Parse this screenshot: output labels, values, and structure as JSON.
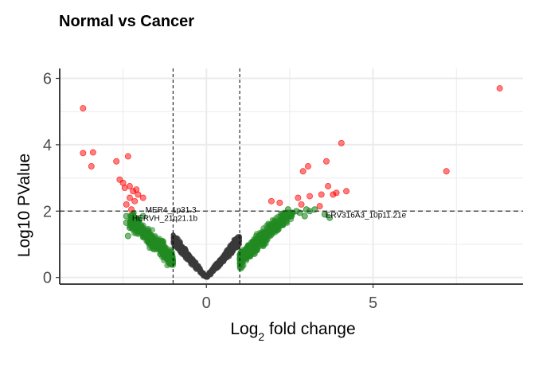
{
  "chart_data": {
    "type": "scatter",
    "title": "Normal vs Cancer",
    "xlabel": "Log2 fold change",
    "xlabel_parts": {
      "pre": "Log",
      "sub": "2",
      "post": " fold change"
    },
    "ylabel": "Log10 PValue",
    "xlim": [
      -4.4,
      9.5
    ],
    "ylim": [
      -0.2,
      6.3
    ],
    "x_ticks": [
      {
        "value": 0,
        "label": "0"
      },
      {
        "value": 5,
        "label": "5"
      }
    ],
    "y_ticks": [
      {
        "value": 0,
        "label": "0"
      },
      {
        "value": 2,
        "label": "2"
      },
      {
        "value": 4,
        "label": "4"
      },
      {
        "value": 6,
        "label": "6"
      }
    ],
    "grid": true,
    "thresholds": {
      "x": [
        -1,
        1
      ],
      "y": 2
    },
    "colors": {
      "significant": "#ff0000",
      "fold_change_only": "#228b22",
      "not_significant": "#3a3a3a"
    },
    "series": [
      {
        "color": "#ff0000",
        "points": [
          [
            -3.7,
            5.1
          ],
          [
            -3.7,
            3.75
          ],
          [
            -3.4,
            3.77
          ],
          [
            -3.45,
            3.35
          ],
          [
            -2.7,
            3.5
          ],
          [
            -2.35,
            3.65
          ],
          [
            -2.6,
            2.95
          ],
          [
            -2.5,
            2.85
          ],
          [
            -2.45,
            2.7
          ],
          [
            -2.3,
            2.75
          ],
          [
            -2.2,
            2.6
          ],
          [
            -2.1,
            2.65
          ],
          [
            -2.05,
            2.5
          ],
          [
            -2.3,
            2.4
          ],
          [
            -1.9,
            2.4
          ],
          [
            -2.15,
            2.3
          ],
          [
            -2.4,
            2.2
          ],
          [
            -2.25,
            2.05
          ],
          [
            1.95,
            2.3
          ],
          [
            2.2,
            2.25
          ],
          [
            2.75,
            2.4
          ],
          [
            2.9,
            3.2
          ],
          [
            3.05,
            3.35
          ],
          [
            3.1,
            2.45
          ],
          [
            3.45,
            2.5
          ],
          [
            3.6,
            3.5
          ],
          [
            3.65,
            2.75
          ],
          [
            3.8,
            2.5
          ],
          [
            3.9,
            2.55
          ],
          [
            4.05,
            4.05
          ],
          [
            4.2,
            2.6
          ],
          [
            7.2,
            3.2
          ],
          [
            8.8,
            5.7
          ],
          [
            3.4,
            2.15
          ],
          [
            2.85,
            2.2
          ]
        ]
      },
      {
        "color": "#228b22",
        "band": {
          "xmin": 1.0,
          "xmax": 2.6,
          "noise": 0.35
        },
        "extra_points": [
          [
            -2.4,
            1.85
          ],
          [
            -2.4,
            1.65
          ],
          [
            -2.2,
            1.9
          ],
          [
            -2.1,
            1.75
          ],
          [
            -2.3,
            1.5
          ],
          [
            -2.35,
            1.25
          ],
          [
            -2.0,
            1.55
          ],
          [
            -1.9,
            1.85
          ],
          [
            2.35,
            1.85
          ],
          [
            2.55,
            1.85
          ],
          [
            2.7,
            2.0
          ],
          [
            2.8,
            1.95
          ],
          [
            3.0,
            2.05
          ],
          [
            3.1,
            2.0
          ],
          [
            3.25,
            2.05
          ],
          [
            3.55,
            1.9
          ],
          [
            3.7,
            1.8
          ],
          [
            2.45,
            2.05
          ],
          [
            2.95,
            1.85
          ]
        ]
      },
      {
        "color": "#3a3a3a",
        "band": {
          "xmin": 0,
          "xmax": 1.0
        }
      }
    ],
    "annotations": [
      {
        "text": "MER4_1p31.3",
        "x": -1.9,
        "y": 2.05,
        "anchor_x": -2.25,
        "anchor_y": 2.05
      },
      {
        "text": "HERVH_21q21.1b",
        "x": -2.3,
        "y": 1.8,
        "anchor_x": -2.3,
        "anchor_y": 1.8
      },
      {
        "text": "ERV316A3_10p11.21e",
        "x": 3.5,
        "y": 1.9,
        "anchor_x": 3.4,
        "anchor_y": 1.9
      }
    ]
  }
}
